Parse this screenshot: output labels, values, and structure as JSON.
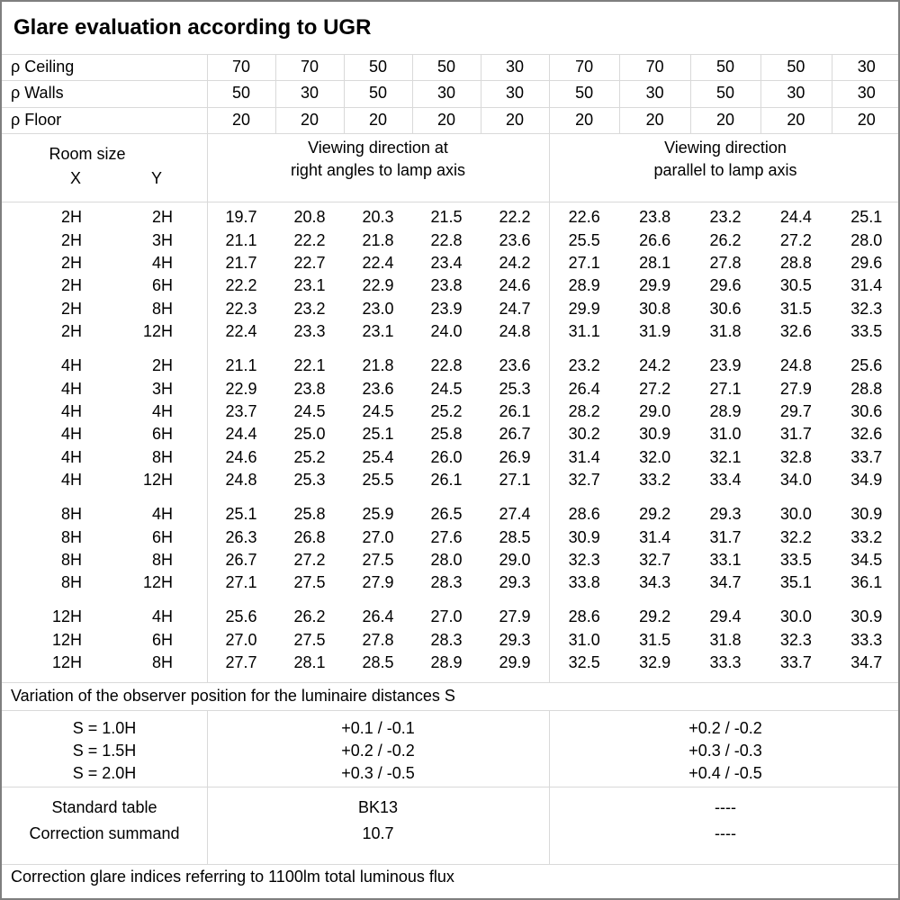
{
  "title": "Glare evaluation according to UGR",
  "reflectance_rows": [
    {
      "label": "ρ Ceiling",
      "values": [
        "70",
        "70",
        "50",
        "50",
        "30",
        "70",
        "70",
        "50",
        "50",
        "30"
      ]
    },
    {
      "label": "ρ Walls",
      "values": [
        "50",
        "30",
        "50",
        "30",
        "30",
        "50",
        "30",
        "50",
        "30",
        "30"
      ]
    },
    {
      "label": "ρ Floor",
      "values": [
        "20",
        "20",
        "20",
        "20",
        "20",
        "20",
        "20",
        "20",
        "20",
        "20"
      ]
    }
  ],
  "header": {
    "room_size": "Room size",
    "x": "X",
    "y": "Y",
    "left_group_line1": "Viewing direction at",
    "left_group_line2": "right angles to lamp axis",
    "right_group_line1": "Viewing direction",
    "right_group_line2": "parallel to lamp axis"
  },
  "groups": [
    {
      "rows": [
        {
          "x": "2H",
          "y": "2H",
          "right_angle": [
            "19.7",
            "20.8",
            "20.3",
            "21.5",
            "22.2"
          ],
          "parallel": [
            "22.6",
            "23.8",
            "23.2",
            "24.4",
            "25.1"
          ]
        },
        {
          "x": "2H",
          "y": "3H",
          "right_angle": [
            "21.1",
            "22.2",
            "21.8",
            "22.8",
            "23.6"
          ],
          "parallel": [
            "25.5",
            "26.6",
            "26.2",
            "27.2",
            "28.0"
          ]
        },
        {
          "x": "2H",
          "y": "4H",
          "right_angle": [
            "21.7",
            "22.7",
            "22.4",
            "23.4",
            "24.2"
          ],
          "parallel": [
            "27.1",
            "28.1",
            "27.8",
            "28.8",
            "29.6"
          ]
        },
        {
          "x": "2H",
          "y": "6H",
          "right_angle": [
            "22.2",
            "23.1",
            "22.9",
            "23.8",
            "24.6"
          ],
          "parallel": [
            "28.9",
            "29.9",
            "29.6",
            "30.5",
            "31.4"
          ]
        },
        {
          "x": "2H",
          "y": "8H",
          "right_angle": [
            "22.3",
            "23.2",
            "23.0",
            "23.9",
            "24.7"
          ],
          "parallel": [
            "29.9",
            "30.8",
            "30.6",
            "31.5",
            "32.3"
          ]
        },
        {
          "x": "2H",
          "y": "12H",
          "right_angle": [
            "22.4",
            "23.3",
            "23.1",
            "24.0",
            "24.8"
          ],
          "parallel": [
            "31.1",
            "31.9",
            "31.8",
            "32.6",
            "33.5"
          ]
        }
      ]
    },
    {
      "rows": [
        {
          "x": "4H",
          "y": "2H",
          "right_angle": [
            "21.1",
            "22.1",
            "21.8",
            "22.8",
            "23.6"
          ],
          "parallel": [
            "23.2",
            "24.2",
            "23.9",
            "24.8",
            "25.6"
          ]
        },
        {
          "x": "4H",
          "y": "3H",
          "right_angle": [
            "22.9",
            "23.8",
            "23.6",
            "24.5",
            "25.3"
          ],
          "parallel": [
            "26.4",
            "27.2",
            "27.1",
            "27.9",
            "28.8"
          ]
        },
        {
          "x": "4H",
          "y": "4H",
          "right_angle": [
            "23.7",
            "24.5",
            "24.5",
            "25.2",
            "26.1"
          ],
          "parallel": [
            "28.2",
            "29.0",
            "28.9",
            "29.7",
            "30.6"
          ]
        },
        {
          "x": "4H",
          "y": "6H",
          "right_angle": [
            "24.4",
            "25.0",
            "25.1",
            "25.8",
            "26.7"
          ],
          "parallel": [
            "30.2",
            "30.9",
            "31.0",
            "31.7",
            "32.6"
          ]
        },
        {
          "x": "4H",
          "y": "8H",
          "right_angle": [
            "24.6",
            "25.2",
            "25.4",
            "26.0",
            "26.9"
          ],
          "parallel": [
            "31.4",
            "32.0",
            "32.1",
            "32.8",
            "33.7"
          ]
        },
        {
          "x": "4H",
          "y": "12H",
          "right_angle": [
            "24.8",
            "25.3",
            "25.5",
            "26.1",
            "27.1"
          ],
          "parallel": [
            "32.7",
            "33.2",
            "33.4",
            "34.0",
            "34.9"
          ]
        }
      ]
    },
    {
      "rows": [
        {
          "x": "8H",
          "y": "4H",
          "right_angle": [
            "25.1",
            "25.8",
            "25.9",
            "26.5",
            "27.4"
          ],
          "parallel": [
            "28.6",
            "29.2",
            "29.3",
            "30.0",
            "30.9"
          ]
        },
        {
          "x": "8H",
          "y": "6H",
          "right_angle": [
            "26.3",
            "26.8",
            "27.0",
            "27.6",
            "28.5"
          ],
          "parallel": [
            "30.9",
            "31.4",
            "31.7",
            "32.2",
            "33.2"
          ]
        },
        {
          "x": "8H",
          "y": "8H",
          "right_angle": [
            "26.7",
            "27.2",
            "27.5",
            "28.0",
            "29.0"
          ],
          "parallel": [
            "32.3",
            "32.7",
            "33.1",
            "33.5",
            "34.5"
          ]
        },
        {
          "x": "8H",
          "y": "12H",
          "right_angle": [
            "27.1",
            "27.5",
            "27.9",
            "28.3",
            "29.3"
          ],
          "parallel": [
            "33.8",
            "34.3",
            "34.7",
            "35.1",
            "36.1"
          ]
        }
      ]
    },
    {
      "rows": [
        {
          "x": "12H",
          "y": "4H",
          "right_angle": [
            "25.6",
            "26.2",
            "26.4",
            "27.0",
            "27.9"
          ],
          "parallel": [
            "28.6",
            "29.2",
            "29.4",
            "30.0",
            "30.9"
          ]
        },
        {
          "x": "12H",
          "y": "6H",
          "right_angle": [
            "27.0",
            "27.5",
            "27.8",
            "28.3",
            "29.3"
          ],
          "parallel": [
            "31.0",
            "31.5",
            "31.8",
            "32.3",
            "33.3"
          ]
        },
        {
          "x": "12H",
          "y": "8H",
          "right_angle": [
            "27.7",
            "28.1",
            "28.5",
            "28.9",
            "29.9"
          ],
          "parallel": [
            "32.5",
            "32.9",
            "33.3",
            "33.7",
            "34.7"
          ]
        }
      ]
    }
  ],
  "variation_note": "Variation of the observer position for the luminaire distances S",
  "s_section": {
    "labels": [
      "S = 1.0H",
      "S = 1.5H",
      "S = 2.0H"
    ],
    "right_angle": [
      "+0.1 / -0.1",
      "+0.2 / -0.2",
      "+0.3 / -0.5"
    ],
    "parallel": [
      "+0.2 / -0.2",
      "+0.3 / -0.3",
      "+0.4 / -0.5"
    ]
  },
  "summary": {
    "labels": [
      "Standard table",
      "Correction summand"
    ],
    "right_angle": [
      "BK13",
      "10.7"
    ],
    "parallel": [
      "----",
      "----"
    ]
  },
  "footer_note": "Correction glare indices referring to 1100lm total luminous flux",
  "colors": {
    "grid_line": "#d9d9d9",
    "outer_border": "#7f7f7f",
    "text": "#000000",
    "background": "#ffffff"
  }
}
